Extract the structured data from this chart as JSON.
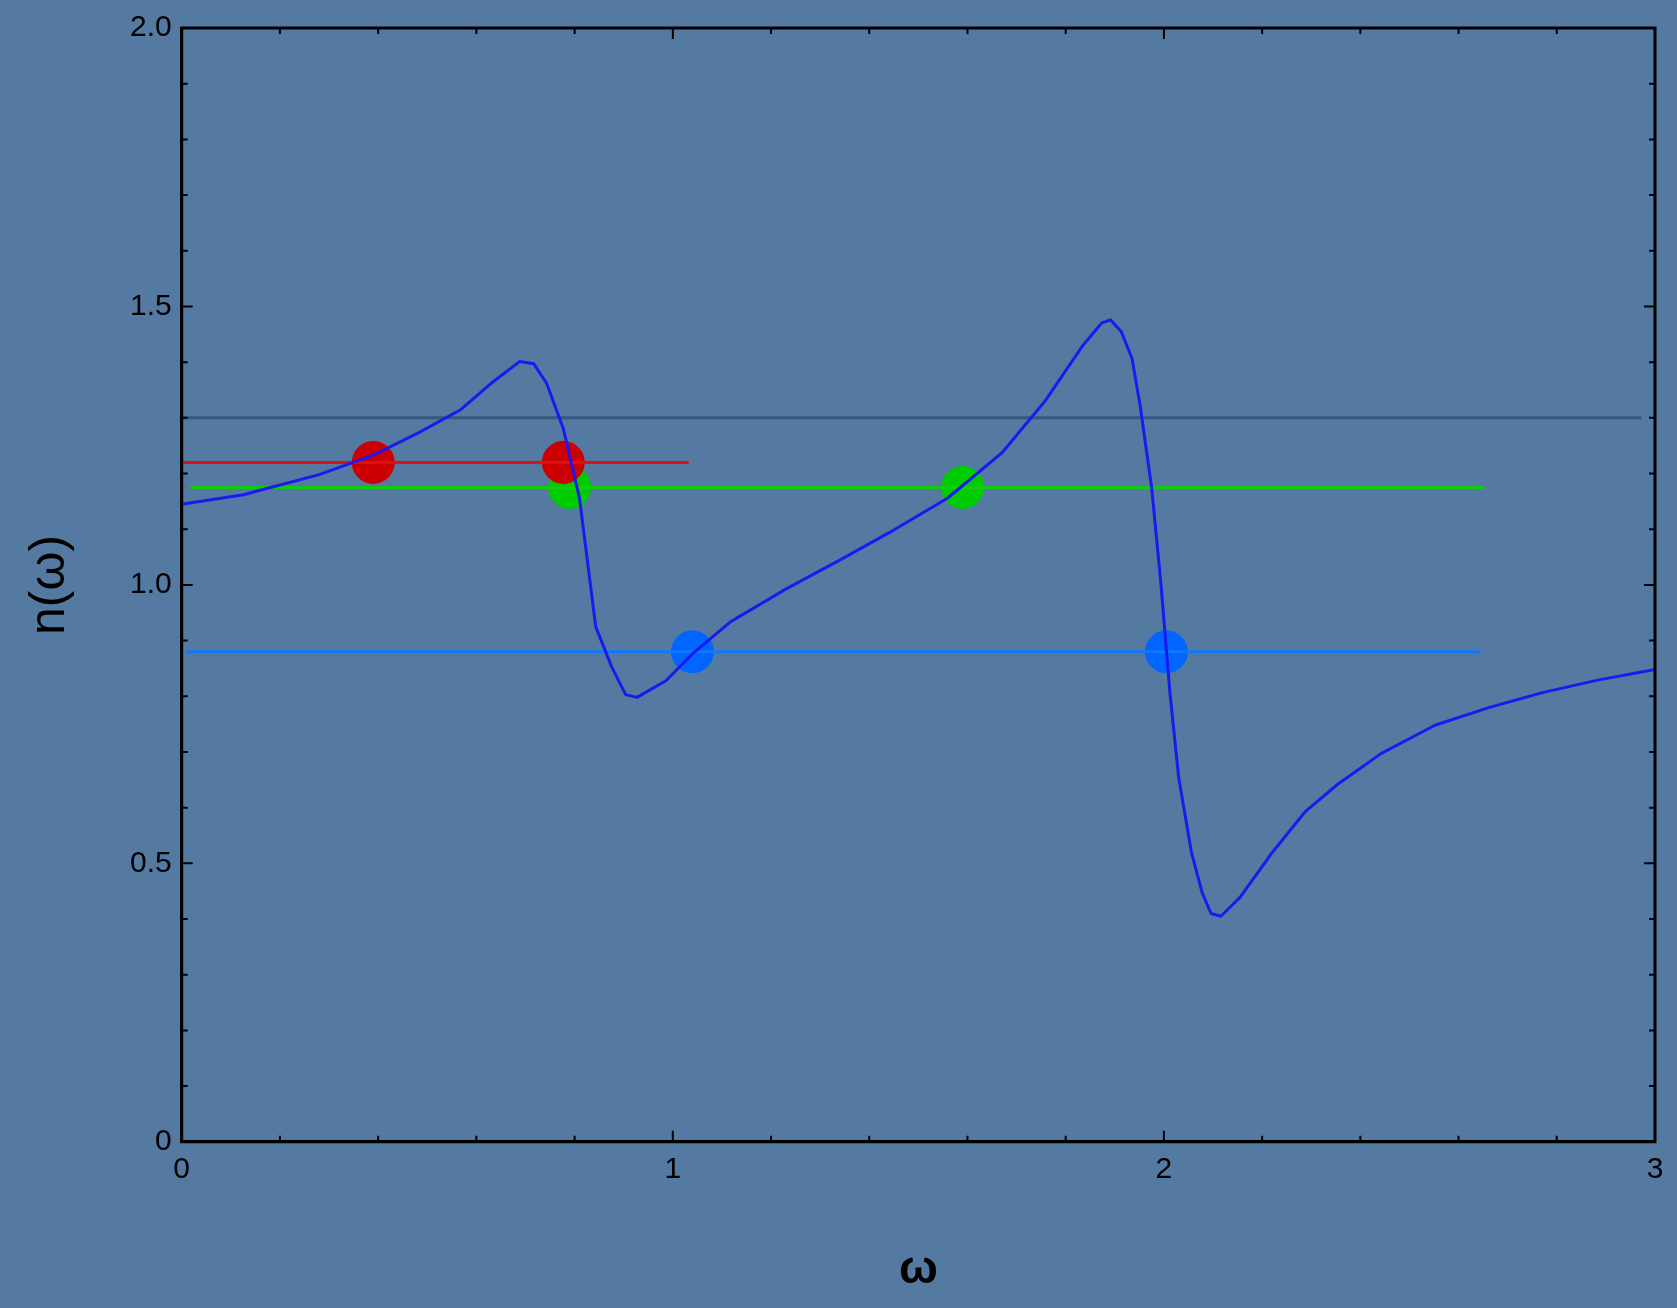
{
  "chart_data": {
    "type": "line",
    "xlabel": "ω",
    "ylabel": "n(ω)",
    "xlim": [
      0,
      3
    ],
    "ylim": [
      0,
      2
    ],
    "xticks": [
      0,
      {
        "value": 0.2,
        "label": null
      },
      {
        "value": 0.4,
        "label": null
      },
      {
        "value": 0.6,
        "label": null
      },
      {
        "value": 0.8,
        "label": null
      },
      1,
      {
        "value": 1.2,
        "label": null
      },
      {
        "value": 1.4,
        "label": null
      },
      {
        "value": 1.6,
        "label": null
      },
      {
        "value": 1.8,
        "label": null
      },
      2,
      {
        "value": 2.2,
        "label": null
      },
      {
        "value": 2.4,
        "label": null
      },
      {
        "value": 2.6,
        "label": null
      },
      {
        "value": 2.8,
        "label": null
      },
      3
    ],
    "yticks": [
      0,
      {
        "value": 0.1,
        "label": null
      },
      {
        "value": 0.2,
        "label": null
      },
      {
        "value": 0.3,
        "label": null
      },
      {
        "value": 0.4,
        "label": null
      },
      0.5,
      {
        "value": 0.6,
        "label": null
      },
      {
        "value": 0.7,
        "label": null
      },
      {
        "value": 0.8,
        "label": null
      },
      {
        "value": 0.9,
        "label": null
      },
      {
        "value": 1,
        "label": "1.0"
      },
      {
        "value": 1.1,
        "label": null
      },
      {
        "value": 1.2,
        "label": null
      },
      {
        "value": 1.3,
        "label": null
      },
      {
        "value": 1.4,
        "label": null
      },
      1.5,
      {
        "value": 1.6,
        "label": null
      },
      {
        "value": 1.7,
        "label": null
      },
      {
        "value": 1.8,
        "label": null
      },
      {
        "value": 1.9,
        "label": null
      },
      {
        "value": 2,
        "label": "2.0"
      }
    ],
    "grid": false,
    "legend": false,
    "marker": "none",
    "line_style": "solid",
    "series": [
      {
        "type": "line",
        "color": "#1a1aee",
        "x": [
          0,
          0.126,
          0.28,
          0.39,
          0.48,
          0.567,
          0.633,
          0.688,
          0.717,
          0.743,
          0.777,
          0.81,
          0.843,
          0.876,
          0.904,
          0.927,
          0.986,
          1.041,
          1.118,
          1.229,
          1.339,
          1.449,
          1.56,
          1.67,
          1.758,
          1.835,
          1.873,
          1.891,
          1.913,
          1.935,
          1.952,
          1.975,
          1.994,
          2.012,
          2.03,
          2.056,
          2.078,
          2.096,
          2.116,
          2.155,
          2.221,
          2.288,
          2.354,
          2.442,
          2.552,
          2.663,
          2.773,
          2.883,
          3.0
        ],
        "values": [
          1.145,
          1.162,
          1.198,
          1.233,
          1.272,
          1.314,
          1.364,
          1.401,
          1.397,
          1.362,
          1.281,
          1.156,
          0.925,
          0.852,
          0.803,
          0.798,
          0.828,
          0.877,
          0.934,
          0.992,
          1.044,
          1.098,
          1.156,
          1.237,
          1.33,
          1.43,
          1.47,
          1.476,
          1.455,
          1.407,
          1.32,
          1.175,
          1.002,
          0.809,
          0.655,
          0.52,
          0.447,
          0.41,
          0.405,
          0.439,
          0.52,
          0.593,
          0.642,
          0.697,
          0.748,
          0.78,
          0.807,
          0.829,
          0.848
        ]
      },
      {
        "type": "line",
        "color": "#34587f",
        "x": [
          0,
          2.97
        ],
        "values": [
          1.3,
          1.3
        ]
      },
      {
        "type": "line",
        "color": "#dd1111",
        "x": [
          0,
          1.03
        ],
        "values": [
          1.22,
          1.22
        ]
      },
      {
        "type": "line",
        "color": "#11cc11",
        "x": [
          0.02,
          2.65
        ],
        "values": [
          1.175,
          1.175
        ]
      },
      {
        "type": "line",
        "color": "#1177ff",
        "x": [
          0.01,
          2.64
        ],
        "values": [
          0.88,
          0.88
        ]
      },
      {
        "type": "scatter",
        "marker": "circle",
        "color": "#cc0000",
        "x": [
          0.39,
          0.777
        ],
        "values": [
          1.22,
          1.22
        ]
      },
      {
        "type": "scatter",
        "marker": "circle",
        "color": "#00cc00",
        "x": [
          0.79,
          1.59
        ],
        "values": [
          1.175,
          1.175
        ]
      },
      {
        "type": "scatter",
        "marker": "circle",
        "color": "#0066ff",
        "x": [
          1.04,
          2.005
        ],
        "values": [
          0.88,
          0.88
        ]
      }
    ]
  }
}
